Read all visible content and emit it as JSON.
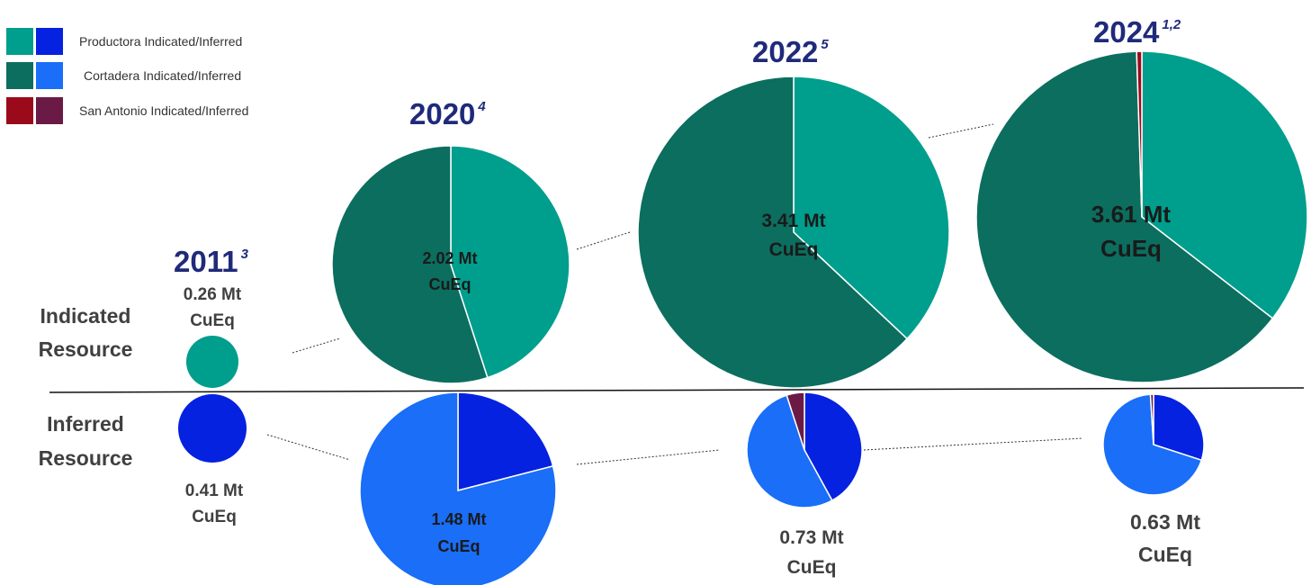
{
  "legend": {
    "items": [
      {
        "label": "Productora Indicated/Inferred",
        "indicated_color": "#009e8c",
        "inferred_color": "#0522e0"
      },
      {
        "label": "Cortadera Indicated/Inferred",
        "indicated_color": "#0b6e5f",
        "inferred_color": "#1a6ef7"
      },
      {
        "label": "San Antonio Indicated/Inferred",
        "indicated_color": "#9b0a1a",
        "inferred_color": "#6a1a45"
      }
    ]
  },
  "row_labels": {
    "indicated": [
      "Indicated",
      "Resource"
    ],
    "inferred": [
      "Inferred",
      "Resource"
    ]
  },
  "chart_data": {
    "type": "pie",
    "unit": "Mt CuEq",
    "series_names": [
      "Productora",
      "Cortadera",
      "San Antonio"
    ],
    "years": [
      {
        "year": "2011",
        "sup": "3",
        "indicated": {
          "total": 0.26,
          "label": [
            "0.26 Mt",
            "CuEq"
          ],
          "shares": [
            1.0,
            0,
            0
          ]
        },
        "inferred": {
          "total": 0.41,
          "label": [
            "0.41 Mt",
            "CuEq"
          ],
          "shares": [
            1.0,
            0,
            0
          ]
        }
      },
      {
        "year": "2020",
        "sup": "4",
        "indicated": {
          "total": 2.02,
          "label": [
            "2.02 Mt",
            "CuEq"
          ],
          "shares": [
            0.45,
            0.55,
            0
          ]
        },
        "inferred": {
          "total": 1.48,
          "label": [
            "1.48 Mt",
            "CuEq"
          ],
          "shares": [
            0.21,
            0.79,
            0
          ]
        }
      },
      {
        "year": "2022",
        "sup": "5",
        "indicated": {
          "total": 3.41,
          "label": [
            "3.41 Mt",
            "CuEq"
          ],
          "shares": [
            0.37,
            0.63,
            0
          ]
        },
        "inferred": {
          "total": 0.73,
          "label": [
            "0.73 Mt",
            "CuEq"
          ],
          "shares": [
            0.42,
            0.53,
            0.05
          ]
        }
      },
      {
        "year": "2024",
        "sup": "1,2",
        "indicated": {
          "total": 3.61,
          "label": [
            "3.61 Mt",
            "CuEq"
          ],
          "shares": [
            0.355,
            0.64,
            0.005
          ]
        },
        "inferred": {
          "total": 0.63,
          "label": [
            "0.63 Mt",
            "CuEq"
          ],
          "shares": [
            0.3,
            0.69,
            0.01
          ]
        }
      }
    ]
  }
}
